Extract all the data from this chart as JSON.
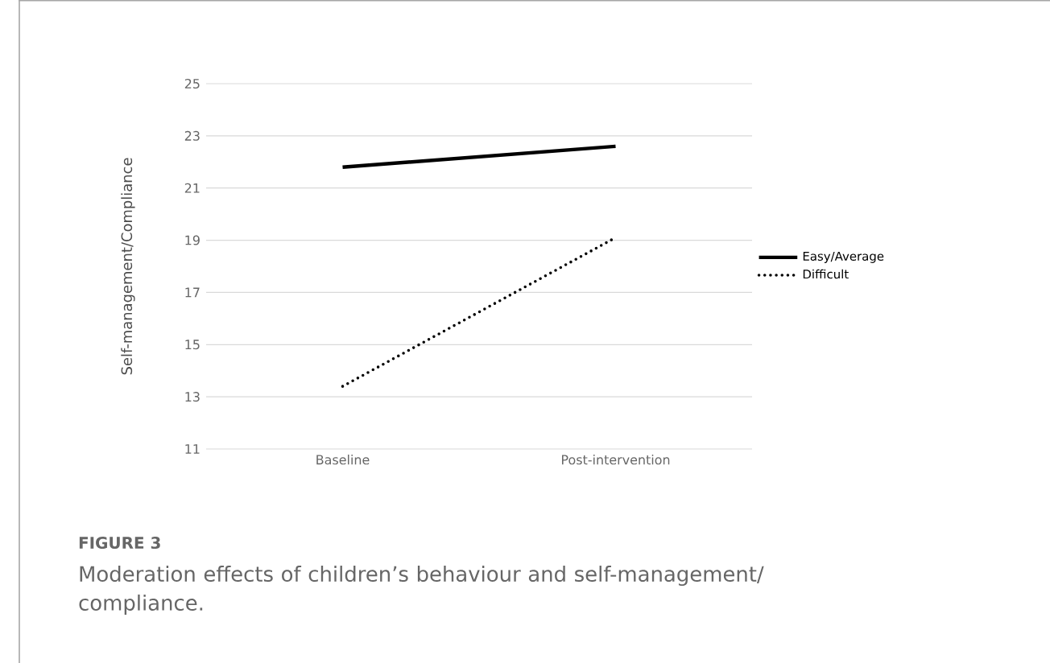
{
  "chart_data": {
    "type": "line",
    "title": "FIGURE 3",
    "subtitle": "Moderation effects of children’s behaviour and self-management/ compliance.",
    "ylabel": "Self-management/Compliance",
    "categories": [
      "Baseline",
      "Post-intervention"
    ],
    "series": [
      {
        "name": "Easy/Average",
        "color": "#000000",
        "values": [
          21.8,
          22.6
        ],
        "line_style": "solid"
      },
      {
        "name": "Difficult",
        "color": "#000000",
        "values": [
          13.4,
          19.1
        ],
        "line_style": "dotted"
      }
    ],
    "ylim": [
      11,
      25
    ],
    "yticks": [
      11,
      13,
      15,
      17,
      19,
      21,
      23,
      25
    ],
    "grid": "y",
    "legend": "right"
  }
}
